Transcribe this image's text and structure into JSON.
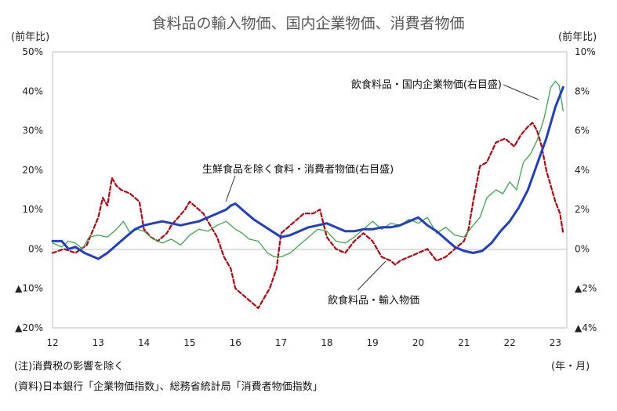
{
  "chart_data": {
    "type": "line",
    "title": "食料品の輸入物価、国内企業物価、消費者物価",
    "left_axis_unit": "(前年比)",
    "right_axis_unit": "(前年比)",
    "x_unit_label": "(年・月)",
    "left_axis": {
      "ylim": [
        -20,
        50
      ],
      "ticks": [
        "▲20%",
        "▲10%",
        "0%",
        "10%",
        "20%",
        "30%",
        "40%",
        "50%"
      ],
      "tick_values": [
        -20,
        -10,
        0,
        10,
        20,
        30,
        40,
        50
      ]
    },
    "right_axis": {
      "ylim": [
        -4,
        10
      ],
      "ticks": [
        "▲4%",
        "▲2%",
        "0%",
        "2%",
        "4%",
        "6%",
        "8%",
        "10%"
      ],
      "tick_values": [
        -4,
        -2,
        0,
        2,
        4,
        6,
        8,
        10
      ]
    },
    "x_ticks": [
      "12",
      "13",
      "14",
      "15",
      "16",
      "17",
      "18",
      "19",
      "20",
      "21",
      "22",
      "23"
    ],
    "x_tick_values": [
      2012,
      2013,
      2014,
      2015,
      2016,
      2017,
      2018,
      2019,
      2020,
      2021,
      2022,
      2023
    ],
    "xlim": [
      2012,
      2023.25
    ],
    "grid": false,
    "series": [
      {
        "name": "飲食料品・輸入物価",
        "axis": "left",
        "color": "#c0000b",
        "style": "dashed",
        "x": [
          2012.0,
          2012.25,
          2012.5,
          2012.75,
          2013.0,
          2013.1,
          2013.2,
          2013.3,
          2013.4,
          2013.5,
          2013.7,
          2013.9,
          2014.0,
          2014.15,
          2014.3,
          2014.5,
          2014.6,
          2014.75,
          2014.9,
          2015.0,
          2015.1,
          2015.3,
          2015.5,
          2015.6,
          2015.75,
          2015.9,
          2016.0,
          2016.2,
          2016.4,
          2016.5,
          2016.6,
          2016.75,
          2016.9,
          2017.0,
          2017.2,
          2017.4,
          2017.5,
          2017.7,
          2017.85,
          2018.0,
          2018.2,
          2018.4,
          2018.6,
          2018.8,
          2019.0,
          2019.2,
          2019.4,
          2019.5,
          2019.6,
          2019.8,
          2020.0,
          2020.2,
          2020.4,
          2020.6,
          2020.8,
          2021.0,
          2021.1,
          2021.2,
          2021.35,
          2021.5,
          2021.7,
          2021.9,
          2022.0,
          2022.1,
          2022.25,
          2022.4,
          2022.5,
          2022.6,
          2022.7,
          2022.8,
          2022.9,
          2023.0,
          2023.1,
          2023.17
        ],
        "values": [
          -1,
          0,
          -1,
          1,
          8,
          13,
          11,
          18,
          16,
          15,
          14,
          12,
          5,
          3,
          2,
          4,
          6,
          8,
          10,
          12,
          11,
          9,
          5,
          3,
          -2,
          -5,
          -10,
          -12,
          -14,
          -15,
          -13,
          -10,
          -5,
          4,
          6,
          8,
          9,
          9,
          10,
          3,
          0,
          -1,
          2,
          4,
          2,
          -2,
          -3,
          -4,
          -3,
          -2,
          -1,
          0,
          -3,
          -2,
          0,
          2,
          5,
          12,
          21,
          22,
          27,
          28,
          27,
          26,
          29,
          31,
          32,
          30,
          26,
          20,
          16,
          12,
          9,
          4
        ]
      },
      {
        "name": "飲食料品・国内企業物価(右目盛)",
        "axis": "right",
        "color": "#3cab49",
        "style": "solid",
        "x": [
          2012.0,
          2012.2,
          2012.35,
          2012.5,
          2012.65,
          2012.8,
          2013.0,
          2013.2,
          2013.4,
          2013.55,
          2013.7,
          2013.85,
          2014.0,
          2014.2,
          2014.4,
          2014.6,
          2014.8,
          2015.0,
          2015.2,
          2015.4,
          2015.6,
          2015.8,
          2016.0,
          2016.15,
          2016.3,
          2016.5,
          2016.7,
          2016.85,
          2017.0,
          2017.2,
          2017.4,
          2017.6,
          2017.8,
          2018.0,
          2018.2,
          2018.4,
          2018.6,
          2018.8,
          2019.0,
          2019.2,
          2019.4,
          2019.6,
          2019.8,
          2020.0,
          2020.2,
          2020.4,
          2020.6,
          2020.8,
          2021.0,
          2021.2,
          2021.35,
          2021.5,
          2021.7,
          2021.85,
          2022.0,
          2022.15,
          2022.3,
          2022.45,
          2022.6,
          2022.75,
          2022.9,
          2023.0,
          2023.08,
          2023.17
        ],
        "values": [
          0.3,
          0.1,
          0.4,
          0.3,
          0.0,
          0.6,
          0.7,
          0.6,
          1.0,
          1.4,
          0.8,
          1.0,
          0.9,
          0.5,
          0.3,
          0.5,
          0.2,
          0.7,
          1.0,
          0.9,
          1.2,
          1.4,
          1.0,
          0.8,
          0.5,
          0.4,
          -0.2,
          -0.4,
          -0.4,
          -0.2,
          0.2,
          0.6,
          1.0,
          0.9,
          0.4,
          0.3,
          0.6,
          1.0,
          1.4,
          1.0,
          1.3,
          1.2,
          1.5,
          1.3,
          1.6,
          0.8,
          1.1,
          0.7,
          0.6,
          1.2,
          1.6,
          2.6,
          3.0,
          2.8,
          3.4,
          3.0,
          4.4,
          4.8,
          5.5,
          6.6,
          8.2,
          8.5,
          8.3,
          7.0
        ]
      },
      {
        "name": "生鮮食品を除く食料・消費者物価(右目盛)",
        "axis": "right",
        "color": "#1f3fc8",
        "style": "solid",
        "x": [
          2012.0,
          2012.2,
          2012.35,
          2012.5,
          2012.7,
          2012.9,
          2013.0,
          2013.2,
          2013.4,
          2013.6,
          2013.8,
          2014.0,
          2014.2,
          2014.4,
          2014.6,
          2014.8,
          2015.0,
          2015.2,
          2015.4,
          2015.6,
          2015.8,
          2015.9,
          2016.0,
          2016.2,
          2016.4,
          2016.6,
          2016.8,
          2017.0,
          2017.2,
          2017.4,
          2017.6,
          2017.8,
          2018.0,
          2018.2,
          2018.4,
          2018.6,
          2018.8,
          2019.0,
          2019.2,
          2019.4,
          2019.6,
          2019.8,
          2020.0,
          2020.2,
          2020.4,
          2020.6,
          2020.8,
          2021.0,
          2021.2,
          2021.4,
          2021.6,
          2021.8,
          2022.0,
          2022.2,
          2022.4,
          2022.6,
          2022.8,
          2023.0,
          2023.17
        ],
        "values": [
          0.4,
          0.4,
          0.0,
          0.1,
          -0.2,
          -0.4,
          -0.5,
          -0.2,
          0.2,
          0.6,
          1.0,
          1.2,
          1.3,
          1.4,
          1.3,
          1.2,
          1.3,
          1.4,
          1.6,
          1.8,
          2.0,
          2.2,
          2.3,
          1.9,
          1.5,
          1.2,
          0.9,
          0.6,
          0.7,
          0.9,
          1.1,
          1.2,
          1.3,
          1.1,
          0.9,
          0.9,
          1.0,
          1.0,
          1.1,
          1.1,
          1.2,
          1.4,
          1.6,
          1.2,
          0.9,
          0.5,
          0.1,
          -0.1,
          -0.2,
          -0.1,
          0.3,
          0.9,
          1.4,
          2.1,
          3.0,
          4.3,
          5.6,
          7.2,
          8.2
        ]
      }
    ],
    "annotations": [
      {
        "text": "飲食料品・国内企業物価(右目盛)",
        "series": 1
      },
      {
        "text": "生鮮食品を除く食料・消費者物価(右目盛)",
        "series": 2
      },
      {
        "text": "飲食料品・輸入物価",
        "series": 0
      }
    ]
  },
  "notes": {
    "note1": "(注)消費税の影響を除く",
    "source": "(資料)日本銀行「企業物価指数」、総務省統計局「消費者物価指数」"
  }
}
